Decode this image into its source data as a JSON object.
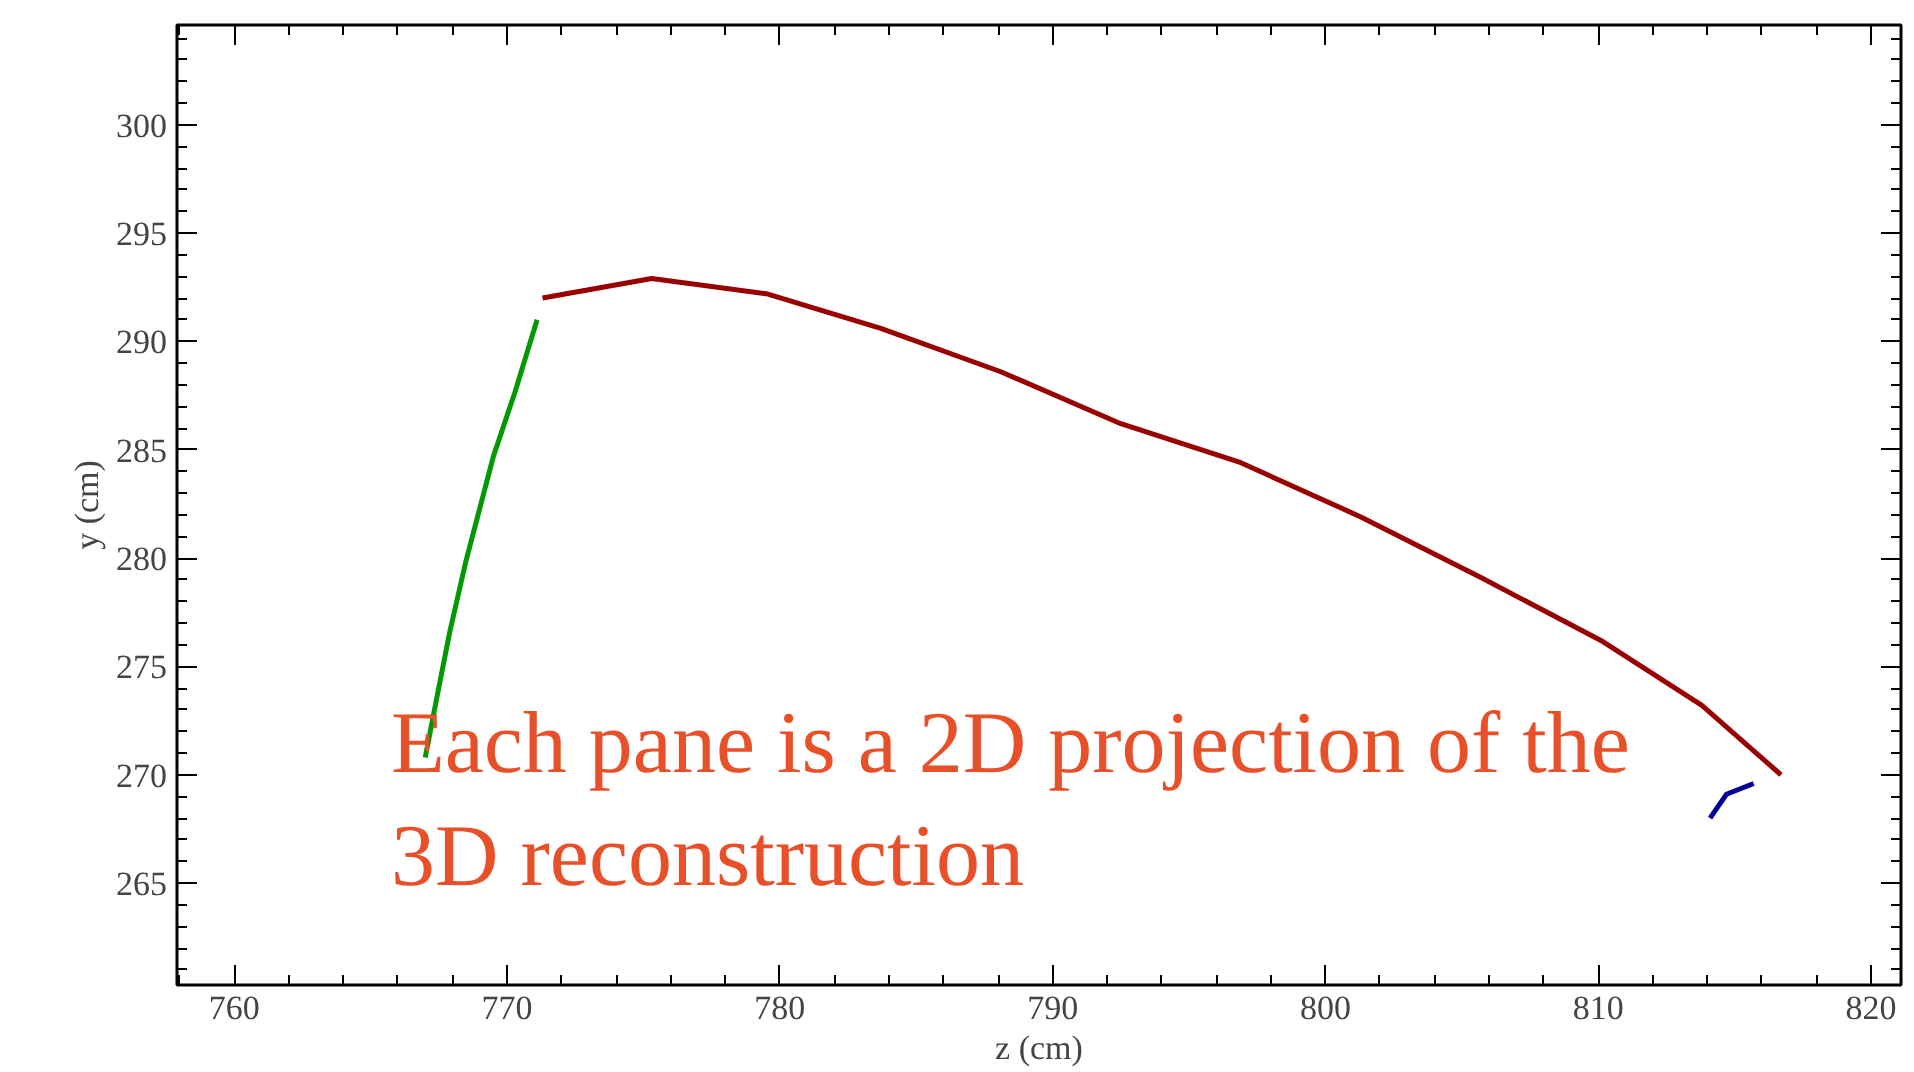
{
  "chart_data": {
    "type": "line",
    "xlabel": "z (cm)",
    "ylabel": "y (cm)",
    "xlim": [
      757.9,
      821.1
    ],
    "ylim": [
      260.3,
      304.6
    ],
    "xticks": [
      760,
      770,
      780,
      790,
      800,
      810,
      820
    ],
    "yticks": [
      265,
      270,
      275,
      280,
      285,
      290,
      295,
      300
    ],
    "grid": false,
    "marker": "none",
    "line_style": "solid",
    "series": [
      {
        "color": "#009900",
        "x": [
          767.0,
          767.4,
          767.9,
          768.5,
          769.5,
          770.3,
          771.1
        ],
        "values": [
          270.8,
          273.4,
          276.6,
          279.9,
          284.7,
          287.7,
          291.0
        ]
      },
      {
        "color": "#990000",
        "x": [
          771.3,
          775.3,
          779.5,
          783.7,
          788.1,
          792.5,
          796.9,
          801.3,
          805.7,
          810.1,
          813.8,
          816.7
        ],
        "values": [
          292.0,
          292.9,
          292.2,
          290.6,
          288.6,
          286.2,
          284.4,
          281.9,
          279.1,
          276.2,
          273.2,
          270.0
        ]
      },
      {
        "color": "#000099",
        "x": [
          814.1,
          814.7,
          815.7
        ],
        "values": [
          268.0,
          269.1,
          269.6
        ]
      }
    ],
    "annotations": [
      "Each pane is a 2D projection of the\n3D reconstruction"
    ]
  }
}
